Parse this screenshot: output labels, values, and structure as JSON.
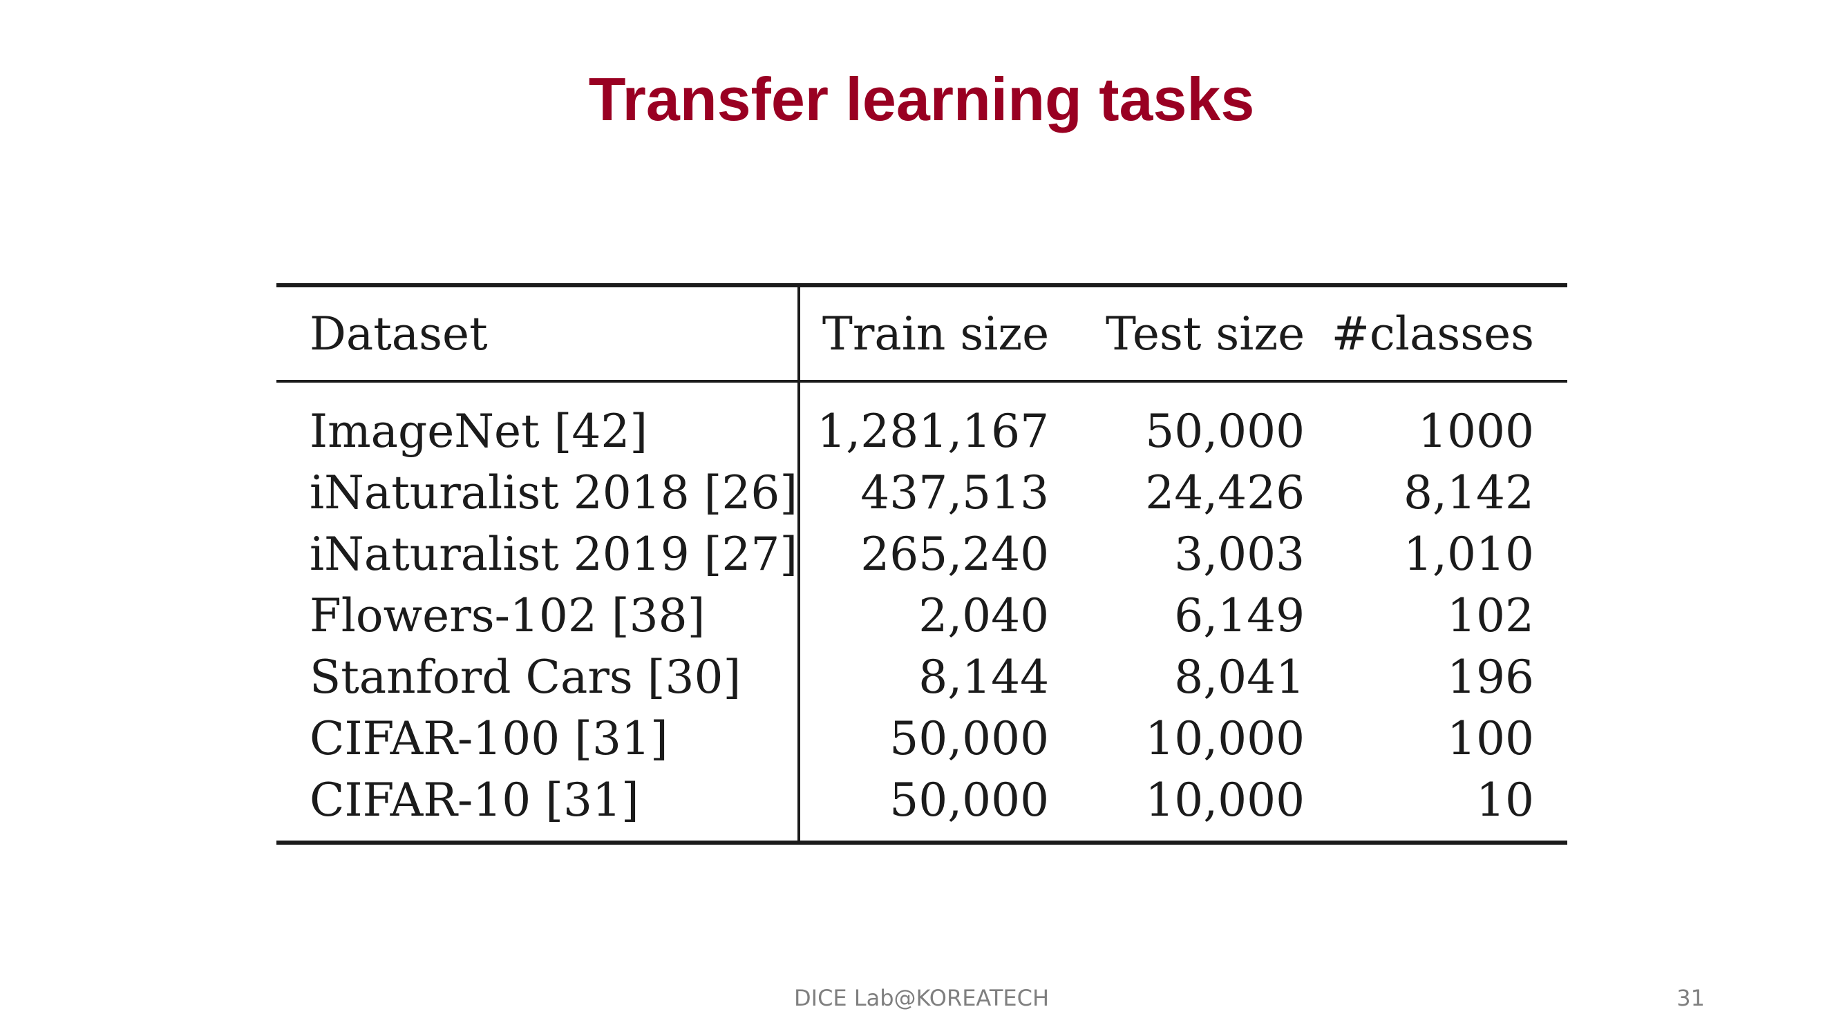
{
  "slide": {
    "title": "Transfer learning tasks",
    "footer": "DICE Lab@KOREATECH",
    "page_number": "31"
  },
  "table": {
    "headers": {
      "dataset": "Dataset",
      "train_size": "Train size",
      "test_size": "Test size",
      "classes": "#classes"
    },
    "rows": [
      {
        "dataset": "ImageNet [42]",
        "train_size": "1,281,167",
        "test_size": "50,000",
        "classes": "1000"
      },
      {
        "dataset": "iNaturalist 2018 [26]",
        "train_size": "437,513",
        "test_size": "24,426",
        "classes": "8,142"
      },
      {
        "dataset": "iNaturalist 2019 [27]",
        "train_size": "265,240",
        "test_size": "3,003",
        "classes": "1,010"
      },
      {
        "dataset": "Flowers-102 [38]",
        "train_size": "2,040",
        "test_size": "6,149",
        "classes": "102"
      },
      {
        "dataset": "Stanford Cars [30]",
        "train_size": "8,144",
        "test_size": "8,041",
        "classes": "196"
      },
      {
        "dataset": "CIFAR-100 [31]",
        "train_size": "50,000",
        "test_size": "10,000",
        "classes": "100"
      },
      {
        "dataset": "CIFAR-10 [31]",
        "train_size": "50,000",
        "test_size": "10,000",
        "classes": "10"
      }
    ]
  }
}
